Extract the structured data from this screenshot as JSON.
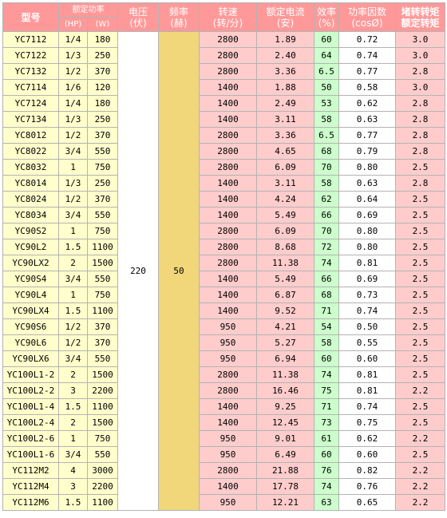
{
  "headers": {
    "model": "型号",
    "power": "额定功率",
    "power_hp": "(HP)",
    "power_w": "(W)",
    "voltage": "电压\n(伏)",
    "frequency": "频率\n(赫)",
    "speed": "转速\n(转/分)",
    "current": "额定电流\n(安)",
    "efficiency": "效率\n(%)",
    "power_factor": "功率因数\n(cosØ)",
    "torque_ratio": "堵转转矩\n额定转矩"
  },
  "voltage": "220",
  "frequency": "50",
  "rows": [
    {
      "model": "YC7112",
      "hp": "1/4",
      "w": "180",
      "speed": "2800",
      "current": "1.89",
      "eff": "60",
      "pf": "0.72",
      "torque": "3.0"
    },
    {
      "model": "YC7122",
      "hp": "1/3",
      "w": "250",
      "speed": "2800",
      "current": "2.40",
      "eff": "64",
      "pf": "0.74",
      "torque": "3.0"
    },
    {
      "model": "YC7132",
      "hp": "1/2",
      "w": "370",
      "speed": "2800",
      "current": "3.36",
      "eff": "6.5",
      "pf": "0.77",
      "torque": "2.8"
    },
    {
      "model": "YC7114",
      "hp": "1/6",
      "w": "120",
      "speed": "1400",
      "current": "1.88",
      "eff": "50",
      "pf": "0.58",
      "torque": "3.0"
    },
    {
      "model": "YC7124",
      "hp": "1/4",
      "w": "180",
      "speed": "1400",
      "current": "2.49",
      "eff": "53",
      "pf": "0.62",
      "torque": "2.8"
    },
    {
      "model": "YC7134",
      "hp": "1/3",
      "w": "250",
      "speed": "1400",
      "current": "3.11",
      "eff": "58",
      "pf": "0.63",
      "torque": "2.8"
    },
    {
      "model": "YC8012",
      "hp": "1/2",
      "w": "370",
      "speed": "2800",
      "current": "3.36",
      "eff": "6.5",
      "pf": "0.77",
      "torque": "2.8"
    },
    {
      "model": "YC8022",
      "hp": "3/4",
      "w": "550",
      "speed": "2800",
      "current": "4.65",
      "eff": "68",
      "pf": "0.79",
      "torque": "2.8"
    },
    {
      "model": "YC8032",
      "hp": "1",
      "w": "750",
      "speed": "2800",
      "current": "6.09",
      "eff": "70",
      "pf": "0.80",
      "torque": "2.5"
    },
    {
      "model": "YC8014",
      "hp": "1/3",
      "w": "250",
      "speed": "1400",
      "current": "3.11",
      "eff": "58",
      "pf": "0.63",
      "torque": "2.8"
    },
    {
      "model": "YC8024",
      "hp": "1/2",
      "w": "370",
      "speed": "1400",
      "current": "4.24",
      "eff": "62",
      "pf": "0.64",
      "torque": "2.5"
    },
    {
      "model": "YC8034",
      "hp": "3/4",
      "w": "550",
      "speed": "1400",
      "current": "5.49",
      "eff": "66",
      "pf": "0.69",
      "torque": "2.5"
    },
    {
      "model": "YC90S2",
      "hp": "1",
      "w": "750",
      "speed": "2800",
      "current": "6.09",
      "eff": "70",
      "pf": "0.80",
      "torque": "2.5"
    },
    {
      "model": "YC90L2",
      "hp": "1.5",
      "w": "1100",
      "speed": "2800",
      "current": "8.68",
      "eff": "72",
      "pf": "0.80",
      "torque": "2.5"
    },
    {
      "model": "YC90LX2",
      "hp": "2",
      "w": "1500",
      "speed": "2800",
      "current": "11.38",
      "eff": "74",
      "pf": "0.81",
      "torque": "2.5"
    },
    {
      "model": "YC90S4",
      "hp": "3/4",
      "w": "550",
      "speed": "1400",
      "current": "5.49",
      "eff": "66",
      "pf": "0.69",
      "torque": "2.5"
    },
    {
      "model": "YC90L4",
      "hp": "1",
      "w": "750",
      "speed": "1400",
      "current": "6.87",
      "eff": "68",
      "pf": "0.73",
      "torque": "2.5"
    },
    {
      "model": "YC90LX4",
      "hp": "1.5",
      "w": "1100",
      "speed": "1400",
      "current": "9.52",
      "eff": "71",
      "pf": "0.74",
      "torque": "2.5"
    },
    {
      "model": "YC90S6",
      "hp": "1/2",
      "w": "370",
      "speed": "950",
      "current": "4.21",
      "eff": "54",
      "pf": "0.50",
      "torque": "2.5"
    },
    {
      "model": "YC90L6",
      "hp": "1/2",
      "w": "370",
      "speed": "950",
      "current": "5.27",
      "eff": "58",
      "pf": "0.55",
      "torque": "2.5"
    },
    {
      "model": "YC90LX6",
      "hp": "3/4",
      "w": "550",
      "speed": "950",
      "current": "6.94",
      "eff": "60",
      "pf": "0.60",
      "torque": "2.5"
    },
    {
      "model": "YC100L1-2",
      "hp": "2",
      "w": "1500",
      "speed": "2800",
      "current": "11.38",
      "eff": "74",
      "pf": "0.81",
      "torque": "2.5"
    },
    {
      "model": "YC100L2-2",
      "hp": "3",
      "w": "2200",
      "speed": "2800",
      "current": "16.46",
      "eff": "75",
      "pf": "0.81",
      "torque": "2.2"
    },
    {
      "model": "YC100L1-4",
      "hp": "1.5",
      "w": "1100",
      "speed": "1400",
      "current": "9.25",
      "eff": "71",
      "pf": "0.74",
      "torque": "2.5"
    },
    {
      "model": "YC100L2-4",
      "hp": "2",
      "w": "1500",
      "speed": "1400",
      "current": "12.45",
      "eff": "73",
      "pf": "0.75",
      "torque": "2.5"
    },
    {
      "model": "YC100L2-6",
      "hp": "1",
      "w": "750",
      "speed": "950",
      "current": "9.01",
      "eff": "61",
      "pf": "0.62",
      "torque": "2.2"
    },
    {
      "model": "YC100L1-6",
      "hp": "3/4",
      "w": "550",
      "speed": "950",
      "current": "6.49",
      "eff": "60",
      "pf": "0.60",
      "torque": "2.5"
    },
    {
      "model": "YC112M2",
      "hp": "4",
      "w": "3000",
      "speed": "2800",
      "current": "21.88",
      "eff": "76",
      "pf": "0.82",
      "torque": "2.2"
    },
    {
      "model": "YC112M4",
      "hp": "3",
      "w": "2200",
      "speed": "1400",
      "current": "17.78",
      "eff": "74",
      "pf": "0.76",
      "torque": "2.2"
    },
    {
      "model": "YC112M6",
      "hp": "1.5",
      "w": "1100",
      "speed": "950",
      "current": "12.21",
      "eff": "63",
      "pf": "0.65",
      "torque": "2.2"
    }
  ]
}
